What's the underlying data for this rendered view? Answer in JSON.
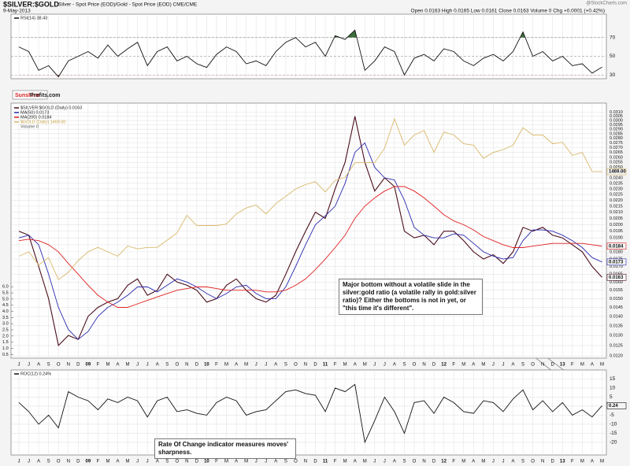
{
  "header": {
    "title": "$SILVER:$GOLD",
    "subtitle": "Silver - Spot Price (EOD)/Gold - Spot Price (EOD) CME/CME",
    "date": "9-May-2013",
    "quote": "Open 0.0163 High 0.0165 Low 0.0161 Close 0.0163 Volume 0 Chg +0.0001 (+0.42%)",
    "watermark": "@StockCharts.com",
    "logo_left": "Sunshine",
    "logo_right": "Profits.com"
  },
  "chart_data": [
    {
      "type": "line",
      "ylim": [
        26,
        95
      ],
      "yticks": [
        30,
        50,
        70
      ],
      "grid": true,
      "series": [
        {
          "name": "RSI(14) 38.43",
          "color": "#111111",
          "values": [
            60,
            55,
            35,
            40,
            28,
            45,
            50,
            55,
            48,
            62,
            50,
            58,
            65,
            40,
            55,
            60,
            45,
            50,
            42,
            38,
            52,
            60,
            55,
            42,
            45,
            40,
            55,
            65,
            70,
            60,
            65,
            50,
            72,
            68,
            78,
            35,
            45,
            60,
            55,
            30,
            48,
            52,
            45,
            58,
            55,
            45,
            40,
            48,
            52,
            45,
            55,
            76,
            50,
            55,
            45,
            50,
            40,
            42,
            32,
            38.43
          ]
        }
      ],
      "overbought_color": "#3c6e3a",
      "oversold_color": "#b03030"
    },
    {
      "type": "line",
      "log_scale": true,
      "ylim": [
        0.0119,
        0.0321
      ],
      "y2lim": [
        192,
        1938
      ],
      "grid": true,
      "categories": [
        "J",
        "J",
        "A",
        "S",
        "O",
        "N",
        "D",
        "09",
        "F",
        "M",
        "A",
        "M",
        "J",
        "J",
        "A",
        "S",
        "O",
        "N",
        "D",
        "10",
        "F",
        "M",
        "A",
        "M",
        "J",
        "J",
        "A",
        "S",
        "O",
        "N",
        "D",
        "11",
        "F",
        "M",
        "A",
        "M",
        "J",
        "J",
        "A",
        "S",
        "O",
        "N",
        "D",
        "12",
        "F",
        "M",
        "A",
        "M",
        "J",
        "J",
        "A",
        "S",
        "O",
        "N",
        "D",
        "13",
        "F",
        "M",
        "A",
        "M"
      ],
      "yticks": [
        {
          "value": 0.012,
          "label": "0.0120"
        },
        {
          "value": 0.0125,
          "label": "0.0125"
        },
        {
          "value": 0.013,
          "label": "0.0130"
        },
        {
          "value": 0.0135,
          "label": "0.0135"
        },
        {
          "value": 0.014,
          "label": "0.0140"
        },
        {
          "value": 0.0145,
          "label": "0.0145"
        },
        {
          "value": 0.015,
          "label": "0.0150"
        },
        {
          "value": 0.0155,
          "label": "0.0155"
        },
        {
          "value": 0.016,
          "label": "0.0160"
        },
        {
          "value": 0.0165,
          "label": "0.0165"
        },
        {
          "value": 0.017,
          "label": "0.0170"
        },
        {
          "value": 0.0175,
          "label": "0.0175"
        },
        {
          "value": 0.018,
          "label": "0.0180"
        },
        {
          "value": 0.0185,
          "label": "0.0185"
        },
        {
          "value": 0.019,
          "label": "0.0190"
        },
        {
          "value": 0.0195,
          "label": "0.0195"
        },
        {
          "value": 0.02,
          "label": "0.0200"
        },
        {
          "value": 0.0205,
          "label": "0.0205"
        },
        {
          "value": 0.021,
          "label": "0.0210"
        },
        {
          "value": 0.0215,
          "label": "0.0215"
        },
        {
          "value": 0.022,
          "label": "0.0220"
        },
        {
          "value": 0.0225,
          "label": "0.0225"
        },
        {
          "value": 0.023,
          "label": "0.0230"
        },
        {
          "value": 0.0235,
          "label": "0.0235"
        },
        {
          "value": 0.024,
          "label": "0.0240"
        },
        {
          "value": 0.0245,
          "label": "0.0245"
        },
        {
          "value": 0.025,
          "label": "0.0250"
        },
        {
          "value": 0.0255,
          "label": "0.0255"
        },
        {
          "value": 0.026,
          "label": "0.0260"
        },
        {
          "value": 0.0265,
          "label": "0.0265"
        },
        {
          "value": 0.027,
          "label": "0.0270"
        },
        {
          "value": 0.0275,
          "label": "0.0275"
        },
        {
          "value": 0.028,
          "label": "0.0280"
        },
        {
          "value": 0.0285,
          "label": "0.0285"
        },
        {
          "value": 0.029,
          "label": "0.0290"
        },
        {
          "value": 0.0295,
          "label": "0.0295"
        },
        {
          "value": 0.03,
          "label": "0.0300"
        },
        {
          "value": 0.0305,
          "label": "0.0305"
        },
        {
          "value": 0.031,
          "label": "0.0310"
        }
      ],
      "vlim": [
        0.2,
        20.9
      ],
      "vticks": [
        0.5,
        {
          "value": 1,
          "label": "1.0"
        },
        1.5,
        {
          "value": 2,
          "label": "2.0"
        },
        2.5,
        {
          "value": 3,
          "label": "3.0"
        },
        3.5,
        {
          "value": 4,
          "label": "4.0"
        },
        4.5,
        {
          "value": 5,
          "label": "5.0"
        },
        5.5,
        {
          "value": 6,
          "label": "6.0"
        }
      ],
      "volume_label": "Volume 0",
      "series": [
        {
          "name": "$SILVER:$GOLD (Daily) 0.0163",
          "color": "#4a0d1a",
          "end_label": "0.0163",
          "values": [
            0.0195,
            0.0192,
            0.017,
            0.015,
            0.0125,
            0.013,
            0.0128,
            0.014,
            0.0145,
            0.0148,
            0.015,
            0.0158,
            0.0162,
            0.0152,
            0.0155,
            0.0165,
            0.016,
            0.0158,
            0.0155,
            0.0148,
            0.015,
            0.0158,
            0.0162,
            0.0155,
            0.015,
            0.0148,
            0.0152,
            0.0165,
            0.018,
            0.0195,
            0.021,
            0.0205,
            0.023,
            0.0255,
            0.0305,
            0.0255,
            0.0228,
            0.024,
            0.0232,
            0.0195,
            0.019,
            0.0192,
            0.0185,
            0.0195,
            0.0195,
            0.0188,
            0.018,
            0.0175,
            0.0178,
            0.0172,
            0.018,
            0.0198,
            0.0195,
            0.0198,
            0.0192,
            0.019,
            0.0185,
            0.018,
            0.017,
            0.0163
          ]
        },
        {
          "name": "MA(50) 0.0173",
          "color": "#2a2ab0",
          "end_label": "0.0173",
          "values": [
            0.019,
            0.0192,
            0.0185,
            0.0165,
            0.0145,
            0.0133,
            0.0128,
            0.0132,
            0.014,
            0.0145,
            0.0148,
            0.0152,
            0.0157,
            0.0157,
            0.0154,
            0.0158,
            0.0162,
            0.016,
            0.0157,
            0.0153,
            0.015,
            0.0153,
            0.0157,
            0.0158,
            0.0153,
            0.015,
            0.015,
            0.0157,
            0.017,
            0.0185,
            0.02,
            0.0207,
            0.0215,
            0.0235,
            0.0265,
            0.0275,
            0.025,
            0.024,
            0.0238,
            0.022,
            0.0198,
            0.0192,
            0.019,
            0.019,
            0.0193,
            0.0192,
            0.0186,
            0.018,
            0.0177,
            0.0175,
            0.0176,
            0.0188,
            0.0196,
            0.0196,
            0.0195,
            0.0192,
            0.0188,
            0.0183,
            0.0176,
            0.0173
          ]
        },
        {
          "name": "MA(200) 0.0184",
          "color": "#e02020",
          "end_label": "0.0184",
          "values": [
            0.0188,
            0.0189,
            0.0188,
            0.0185,
            0.018,
            0.0172,
            0.0165,
            0.0158,
            0.0152,
            0.0148,
            0.0145,
            0.0145,
            0.0147,
            0.0149,
            0.0151,
            0.0153,
            0.0155,
            0.0156,
            0.0157,
            0.0157,
            0.0156,
            0.0155,
            0.0155,
            0.0155,
            0.0155,
            0.0154,
            0.0154,
            0.0155,
            0.0158,
            0.0162,
            0.0168,
            0.0175,
            0.0183,
            0.0192,
            0.0205,
            0.0215,
            0.0222,
            0.0228,
            0.0232,
            0.0232,
            0.0228,
            0.0222,
            0.0215,
            0.0208,
            0.0203,
            0.02,
            0.0196,
            0.0191,
            0.0188,
            0.0185,
            0.0183,
            0.0183,
            0.0184,
            0.0185,
            0.0186,
            0.0186,
            0.0186,
            0.0186,
            0.0185,
            0.0184
          ]
        },
        {
          "name": "$GOLD (Daily) 1469.00",
          "color": "#d9b86a",
          "axis": "y2",
          "end_label": "1469.00",
          "values": [
            890,
            920,
            830,
            880,
            730,
            780,
            860,
            920,
            950,
            920,
            890,
            960,
            940,
            950,
            950,
            1000,
            1050,
            1170,
            1100,
            1100,
            1100,
            1110,
            1180,
            1220,
            1240,
            1180,
            1250,
            1300,
            1350,
            1380,
            1400,
            1330,
            1410,
            1430,
            1530,
            1530,
            1530,
            1630,
            1830,
            1650,
            1720,
            1750,
            1600,
            1740,
            1720,
            1660,
            1650,
            1560,
            1600,
            1620,
            1650,
            1770,
            1720,
            1720,
            1660,
            1670,
            1580,
            1600,
            1470,
            1469
          ]
        }
      ],
      "annotation": "Major bottom without a volatile slide in the silver:gold ratio (a volatile rally in gold:silver ratio)? Either the bottoms is not in yet, or \"this time it's different\"."
    },
    {
      "type": "line",
      "ylim": [
        -27,
        20
      ],
      "yticks": [
        -20,
        -15,
        -10,
        -5,
        0,
        5,
        10,
        15
      ],
      "grid": true,
      "categories": [
        "J",
        "J",
        "A",
        "S",
        "O",
        "N",
        "D",
        "09",
        "F",
        "M",
        "A",
        "M",
        "J",
        "J",
        "A",
        "S",
        "O",
        "N",
        "D",
        "10",
        "F",
        "M",
        "A",
        "M",
        "J",
        "J",
        "A",
        "S",
        "O",
        "N",
        "D",
        "11",
        "F",
        "M",
        "A",
        "M",
        "J",
        "J",
        "A",
        "S",
        "O",
        "N",
        "D",
        "12",
        "F",
        "M",
        "A",
        "M",
        "J",
        "J",
        "A",
        "S",
        "O",
        "N",
        "D",
        "13",
        "F",
        "M",
        "A",
        "M"
      ],
      "series": [
        {
          "name": "ROC(12) 0.24%",
          "color": "#111111",
          "end_label": "0.24",
          "values": [
            2,
            -3,
            -10,
            -5,
            -12,
            8,
            5,
            3,
            -2,
            4,
            2,
            5,
            3,
            -6,
            3,
            5,
            -3,
            -2,
            -4,
            -5,
            2,
            5,
            3,
            -5,
            -3,
            -2,
            3,
            8,
            9,
            7,
            6,
            -3,
            10,
            8,
            12,
            -20,
            -8,
            5,
            -3,
            -15,
            2,
            3,
            -4,
            5,
            2,
            -3,
            -4,
            3,
            2,
            -3,
            4,
            9,
            -2,
            3,
            -3,
            2,
            -5,
            -2,
            -6,
            0.24
          ]
        }
      ],
      "annotation": "Rate Of Change indicator measures moves' sharpness."
    }
  ]
}
